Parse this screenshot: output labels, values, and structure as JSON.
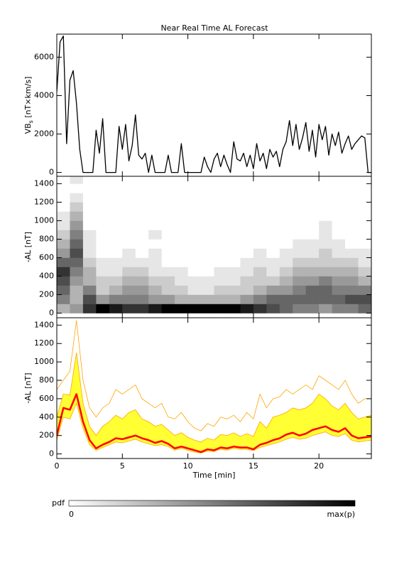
{
  "chart_data": [
    {
      "type": "line",
      "title": "Near Real Time AL Forecast",
      "ylabel": {
        "text": "VB",
        "sub": "s",
        "rest": " [nT×km/s]"
      },
      "xlim": [
        0,
        24
      ],
      "xticks": [
        0,
        5,
        10,
        15,
        20
      ],
      "xtick_labels": false,
      "ylim": [
        -200,
        7200
      ],
      "yticks": [
        0,
        2000,
        4000,
        6000
      ],
      "x": [
        0,
        0.25,
        0.5,
        0.75,
        1,
        1.25,
        1.5,
        1.75,
        2,
        2.25,
        2.5,
        2.75,
        3,
        3.25,
        3.5,
        3.75,
        4,
        4.25,
        4.5,
        4.75,
        5,
        5.25,
        5.5,
        5.75,
        6,
        6.25,
        6.5,
        6.75,
        7,
        7.25,
        7.5,
        7.75,
        8,
        8.25,
        8.5,
        8.75,
        9,
        9.25,
        9.5,
        9.75,
        10,
        10.25,
        10.5,
        10.75,
        11,
        11.25,
        11.5,
        11.75,
        12,
        12.25,
        12.5,
        12.75,
        13,
        13.25,
        13.5,
        13.75,
        14,
        14.25,
        14.5,
        14.75,
        15,
        15.25,
        15.5,
        15.75,
        16,
        16.25,
        16.5,
        16.75,
        17,
        17.25,
        17.5,
        17.75,
        18,
        18.25,
        18.5,
        18.75,
        19,
        19.25,
        19.5,
        19.75,
        20,
        20.25,
        20.5,
        20.75,
        21,
        21.25,
        21.5,
        21.75,
        22,
        22.25,
        22.5,
        22.75,
        23,
        23.25,
        23.5,
        23.75,
        24
      ],
      "series": [
        {
          "color": "#000000",
          "width": 1.3,
          "values": [
            4200,
            6800,
            7100,
            1500,
            4800,
            5300,
            3600,
            1200,
            0,
            0,
            0,
            0,
            2200,
            1000,
            2800,
            0,
            0,
            0,
            0,
            2400,
            1200,
            2500,
            600,
            1400,
            3000,
            900,
            700,
            1000,
            0,
            900,
            0,
            0,
            0,
            0,
            900,
            0,
            0,
            0,
            1500,
            0,
            0,
            0,
            0,
            0,
            0,
            800,
            300,
            0,
            700,
            1000,
            300,
            900,
            400,
            0,
            1600,
            700,
            600,
            1000,
            300,
            900,
            200,
            1500,
            600,
            1000,
            200,
            1200,
            800,
            1100,
            300,
            1200,
            1600,
            2700,
            1400,
            2500,
            1200,
            1800,
            2600,
            1100,
            2200,
            800,
            2500,
            1700,
            2400,
            900,
            2000,
            1400,
            2100,
            1000,
            1500,
            1900,
            1200,
            1500,
            1700,
            1900,
            1800,
            0,
            0
          ]
        }
      ]
    },
    {
      "type": "heatmap",
      "ylabel": "-AL [nT]",
      "xlim": [
        0,
        24
      ],
      "xticks": [
        0,
        5,
        10,
        15,
        20
      ],
      "xtick_labels": false,
      "ylim": [
        -50,
        1480
      ],
      "yticks": [
        0,
        200,
        400,
        600,
        800,
        1000,
        1200,
        1400
      ],
      "xbins": [
        0,
        1,
        2,
        3,
        4,
        5,
        6,
        7,
        8,
        9,
        10,
        11,
        12,
        13,
        14,
        15,
        16,
        17,
        18,
        19,
        20,
        21,
        22,
        23,
        24
      ],
      "ybins": [
        0,
        100,
        200,
        300,
        400,
        500,
        600,
        700,
        800,
        900,
        1000,
        1100,
        1200,
        1300,
        1400,
        1500
      ],
      "values": [
        [
          0.3,
          0.5,
          0.6,
          0.7,
          0.8,
          0.6,
          0.4,
          0.3,
          0.2,
          0.1,
          0.1,
          0,
          0,
          0,
          0
        ],
        [
          0.4,
          0.3,
          0.3,
          0.4,
          0.5,
          0.6,
          0.7,
          0.6,
          0.5,
          0.4,
          0.3,
          0.2,
          0.1,
          0,
          0.1
        ],
        [
          0.8,
          0.7,
          0.5,
          0.3,
          0.3,
          0.2,
          0.1,
          0.1,
          0.1,
          0,
          0,
          0,
          0,
          0,
          0
        ],
        [
          1.0,
          0.4,
          0.2,
          0.2,
          0.1,
          0.1,
          0,
          0,
          0,
          0,
          0,
          0,
          0,
          0,
          0
        ],
        [
          0.9,
          0.5,
          0.3,
          0.2,
          0.1,
          0.1,
          0,
          0,
          0,
          0,
          0,
          0,
          0,
          0,
          0
        ],
        [
          0.8,
          0.5,
          0.4,
          0.3,
          0.2,
          0.1,
          0.1,
          0,
          0,
          0,
          0,
          0,
          0,
          0,
          0
        ],
        [
          0.8,
          0.5,
          0.4,
          0.3,
          0.2,
          0.1,
          0,
          0,
          0,
          0,
          0,
          0,
          0,
          0,
          0
        ],
        [
          0.9,
          0.4,
          0.3,
          0.2,
          0.1,
          0.1,
          0.1,
          0,
          0.1,
          0,
          0,
          0,
          0,
          0,
          0
        ],
        [
          1.0,
          0.4,
          0.2,
          0.2,
          0.1,
          0,
          0,
          0,
          0,
          0,
          0,
          0,
          0,
          0,
          0
        ],
        [
          1.0,
          0.3,
          0.2,
          0.1,
          0.1,
          0,
          0,
          0,
          0,
          0,
          0,
          0,
          0,
          0,
          0
        ],
        [
          1.0,
          0.3,
          0.1,
          0.1,
          0,
          0,
          0,
          0,
          0,
          0,
          0,
          0,
          0,
          0,
          0
        ],
        [
          1.0,
          0.3,
          0.1,
          0.1,
          0,
          0,
          0,
          0,
          0,
          0,
          0,
          0,
          0,
          0,
          0
        ],
        [
          1.0,
          0.3,
          0.2,
          0.1,
          0.1,
          0,
          0,
          0,
          0,
          0,
          0,
          0,
          0,
          0,
          0
        ],
        [
          1.0,
          0.3,
          0.2,
          0.1,
          0.1,
          0,
          0,
          0,
          0,
          0,
          0,
          0,
          0,
          0,
          0
        ],
        [
          0.9,
          0.4,
          0.2,
          0.2,
          0.1,
          0.1,
          0,
          0,
          0,
          0,
          0,
          0,
          0,
          0,
          0
        ],
        [
          0.8,
          0.5,
          0.3,
          0.2,
          0.2,
          0.1,
          0.1,
          0,
          0,
          0,
          0,
          0,
          0,
          0,
          0
        ],
        [
          0.7,
          0.6,
          0.4,
          0.2,
          0.1,
          0.1,
          0,
          0,
          0,
          0,
          0,
          0,
          0,
          0,
          0
        ],
        [
          0.6,
          0.6,
          0.4,
          0.3,
          0.2,
          0.1,
          0.1,
          0,
          0,
          0,
          0,
          0,
          0,
          0,
          0
        ],
        [
          0.5,
          0.6,
          0.5,
          0.4,
          0.3,
          0.2,
          0.1,
          0.1,
          0,
          0,
          0,
          0,
          0,
          0,
          0
        ],
        [
          0.5,
          0.6,
          0.6,
          0.4,
          0.3,
          0.2,
          0.1,
          0.1,
          0,
          0,
          0,
          0,
          0,
          0,
          0
        ],
        [
          0.4,
          0.6,
          0.6,
          0.5,
          0.3,
          0.2,
          0.2,
          0.1,
          0.1,
          0.1,
          0,
          0,
          0,
          0,
          0
        ],
        [
          0.5,
          0.6,
          0.5,
          0.4,
          0.3,
          0.2,
          0.1,
          0.1,
          0,
          0,
          0,
          0,
          0,
          0,
          0
        ],
        [
          0.5,
          0.7,
          0.5,
          0.4,
          0.3,
          0.2,
          0.1,
          0,
          0,
          0,
          0,
          0,
          0,
          0,
          0
        ],
        [
          0.6,
          0.7,
          0.5,
          0.3,
          0.2,
          0.1,
          0.1,
          0,
          0,
          0,
          0,
          0,
          0,
          0,
          0
        ]
      ],
      "colorbar": {
        "label": "pdf",
        "clim": [
          0,
          1
        ],
        "ticks": [
          0,
          {
            "value": 1,
            "label": "max(p)"
          }
        ],
        "colors": [
          "#ffffff",
          "#000000"
        ]
      }
    },
    {
      "type": "band",
      "ylabel": "-AL [nT]",
      "xlabel": "Time [min]",
      "xlim": [
        0,
        24
      ],
      "xticks": [
        0,
        5,
        10,
        15,
        20
      ],
      "xtick_labels": true,
      "ylim": [
        -50,
        1480
      ],
      "yticks": [
        0,
        200,
        400,
        600,
        800,
        1000,
        1200,
        1400
      ],
      "x": [
        0,
        0.5,
        1,
        1.5,
        2,
        2.5,
        3,
        3.5,
        4,
        4.5,
        5,
        5.5,
        6,
        6.5,
        7,
        7.5,
        8,
        8.5,
        9,
        9.5,
        10,
        10.5,
        11,
        11.5,
        12,
        12.5,
        13,
        13.5,
        14,
        14.5,
        15,
        15.5,
        16,
        16.5,
        17,
        17.5,
        18,
        18.5,
        19,
        19.5,
        20,
        20.5,
        21,
        21.5,
        22,
        22.5,
        23,
        23.5,
        24
      ],
      "band": {
        "color": "#ffff33",
        "edge": "#ffa500",
        "upper": [
          400,
          650,
          640,
          1100,
          550,
          300,
          200,
          300,
          350,
          420,
          380,
          450,
          480,
          380,
          350,
          300,
          320,
          260,
          200,
          230,
          180,
          150,
          130,
          170,
          150,
          210,
          200,
          230,
          190,
          220,
          190,
          350,
          280,
          400,
          420,
          450,
          500,
          480,
          500,
          550,
          650,
          600,
          520,
          480,
          550,
          450,
          380,
          400,
          420
        ],
        "lower": [
          150,
          400,
          380,
          550,
          280,
          100,
          40,
          70,
          100,
          130,
          120,
          140,
          160,
          130,
          110,
          90,
          100,
          80,
          40,
          60,
          40,
          20,
          10,
          30,
          25,
          50,
          40,
          60,
          50,
          50,
          35,
          70,
          90,
          110,
          130,
          160,
          180,
          160,
          170,
          200,
          220,
          240,
          200,
          190,
          220,
          150,
          130,
          140,
          150
        ]
      },
      "series": [
        {
          "color": "#ffa500",
          "width": 0.8,
          "values": [
            700,
            800,
            900,
            1450,
            800,
            500,
            400,
            500,
            550,
            700,
            650,
            700,
            750,
            600,
            550,
            500,
            550,
            400,
            380,
            450,
            350,
            280,
            250,
            330,
            300,
            400,
            380,
            420,
            350,
            450,
            380,
            650,
            500,
            600,
            620,
            700,
            650,
            700,
            750,
            700,
            850,
            800,
            750,
            700,
            800,
            650,
            550,
            600,
            600
          ]
        },
        {
          "color": "#ff0000",
          "width": 2.5,
          "values": [
            200,
            500,
            480,
            650,
            350,
            150,
            60,
            100,
            130,
            170,
            160,
            180,
            200,
            170,
            150,
            120,
            140,
            110,
            60,
            80,
            60,
            40,
            20,
            50,
            40,
            70,
            60,
            80,
            70,
            70,
            50,
            100,
            120,
            150,
            170,
            210,
            230,
            200,
            220,
            260,
            280,
            300,
            260,
            240,
            280,
            200,
            170,
            180,
            190
          ]
        }
      ]
    }
  ]
}
